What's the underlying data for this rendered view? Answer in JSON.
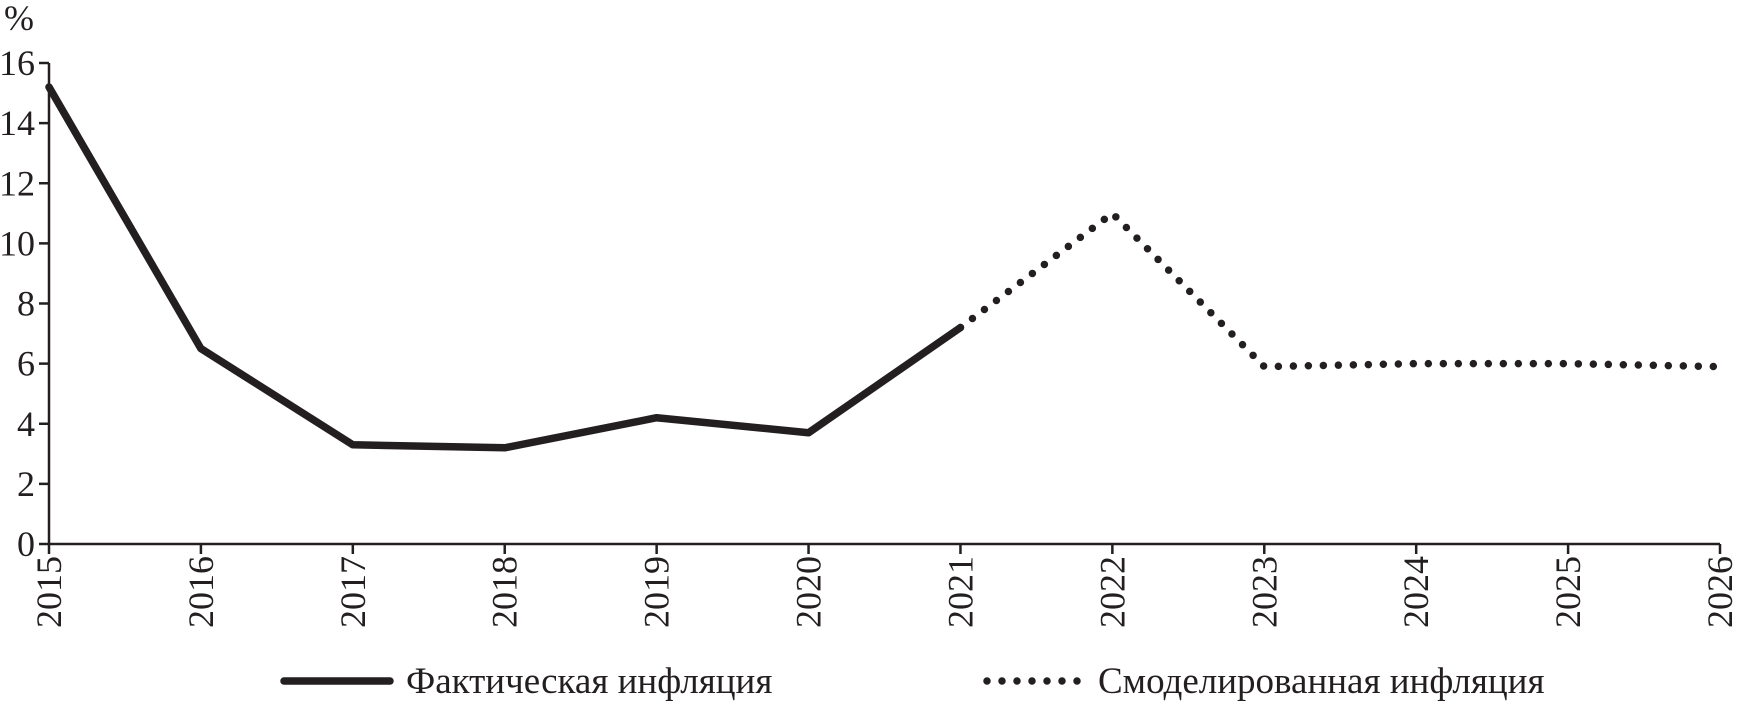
{
  "chart_data": {
    "type": "line",
    "y_label": "%",
    "x": [
      2015,
      2016,
      2017,
      2018,
      2019,
      2020,
      2021,
      2022,
      2023,
      2024,
      2025,
      2026
    ],
    "series": [
      {
        "name": "Фактическая инфляция",
        "color": "#231f20",
        "line_style": "solid",
        "values": [
          15.2,
          6.5,
          3.3,
          3.2,
          4.2,
          3.7,
          7.2,
          null,
          null,
          null,
          null,
          null
        ]
      },
      {
        "name": "Смоделированная инфляция",
        "color": "#231f20",
        "line_style": "dotted",
        "values": [
          null,
          null,
          null,
          null,
          null,
          null,
          7.2,
          11.0,
          5.9,
          6.0,
          6.0,
          5.9
        ]
      }
    ],
    "xlim": [
      2015,
      2026
    ],
    "xticks": [
      2015,
      2016,
      2017,
      2018,
      2019,
      2020,
      2021,
      2022,
      2023,
      2024,
      2025,
      2026
    ],
    "ylim": [
      0,
      16
    ],
    "yticks": [
      0,
      2,
      4,
      6,
      8,
      10,
      12,
      14,
      16
    ],
    "grid": false,
    "legend": "bottom"
  }
}
